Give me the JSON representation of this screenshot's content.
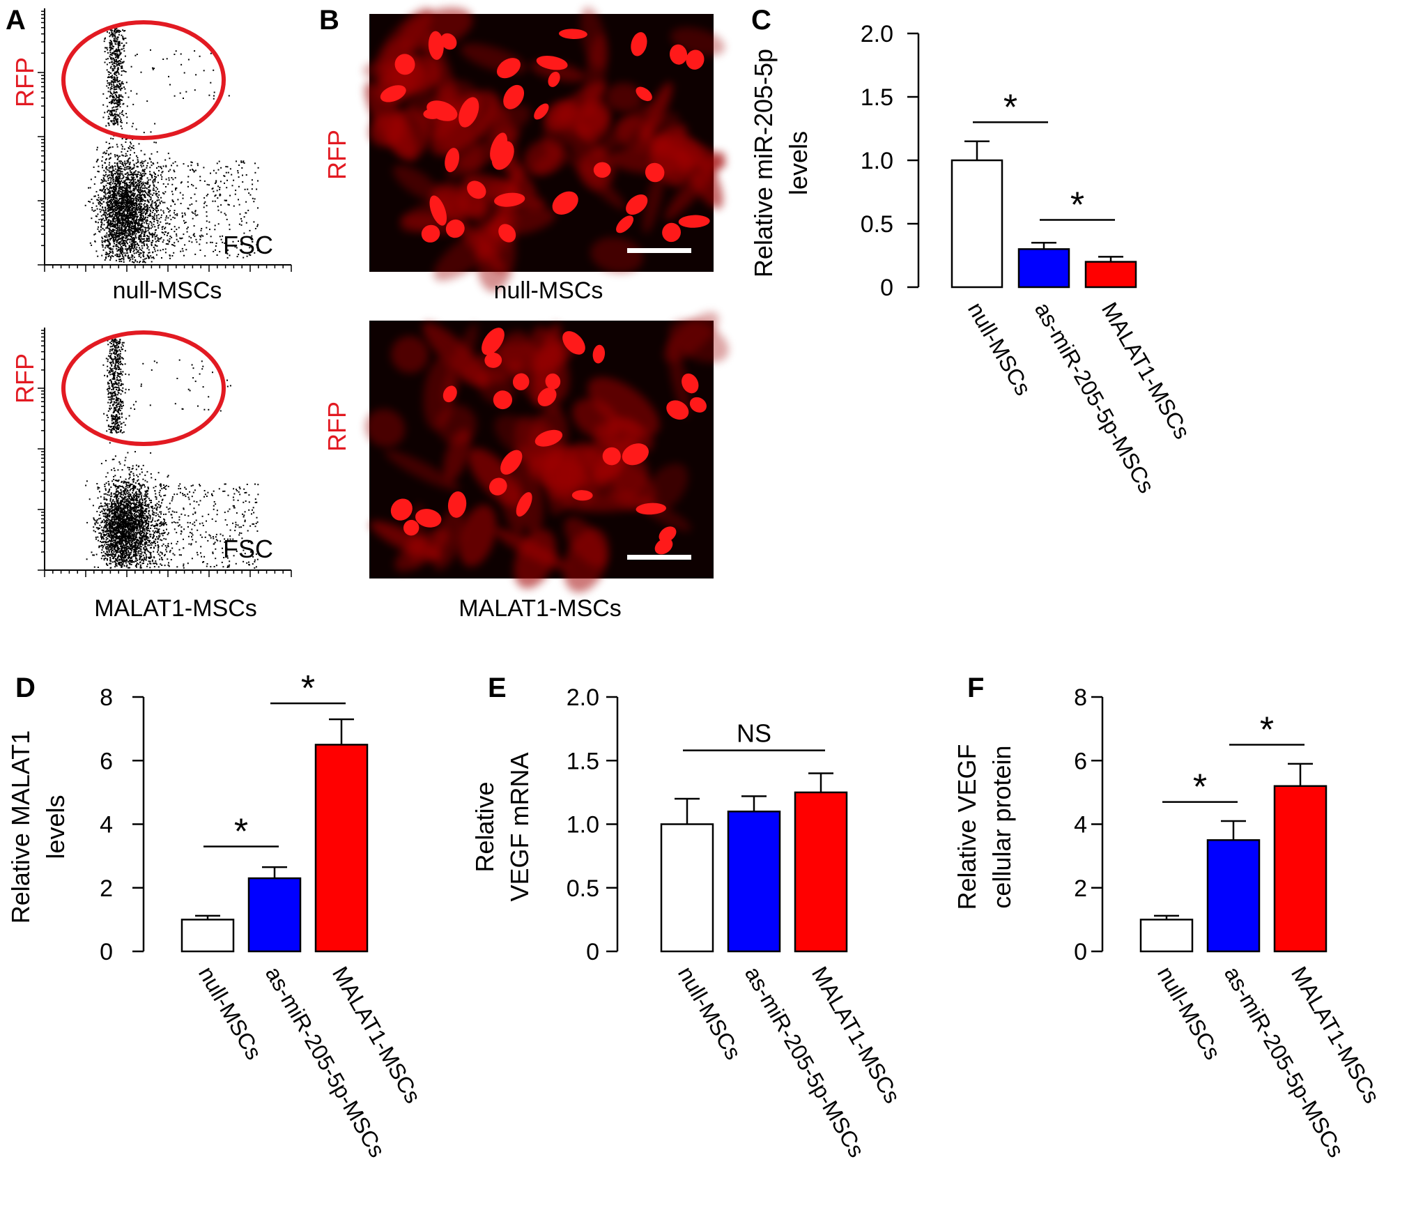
{
  "colors": {
    "red": "#ff0000",
    "blue": "#0000ff",
    "white": "#ffffff",
    "black": "#000000",
    "fluor_bg": "#0d0000",
    "cell_red": "#ff1a1a"
  },
  "panel_labels": [
    "A",
    "B",
    "C",
    "D",
    "E",
    "F"
  ],
  "flow": {
    "y_label": "RFP",
    "x_label": "FSC",
    "captions": [
      "null-MSCs",
      "MALAT1-MSCs"
    ]
  },
  "micrograph": {
    "channel_label": "RFP",
    "captions": [
      "null-MSCs",
      "MALAT1-MSCs"
    ]
  },
  "chart_data": [
    {
      "id": "C",
      "type": "bar",
      "ylabel": [
        "Relative miR-205-5p",
        "levels"
      ],
      "categories": [
        "null-MSCs",
        "as-miR-205-5p-MSCs",
        "MALAT1-MSCs"
      ],
      "values": [
        1.0,
        0.3,
        0.2
      ],
      "errors": [
        0.15,
        0.05,
        0.04
      ],
      "ylim": [
        0,
        2.0
      ],
      "ticks": [
        0,
        0.5,
        1.0,
        1.5,
        2.0
      ],
      "tick_labels": [
        "0",
        "0.5",
        "1.0",
        "1.5",
        "2.0"
      ],
      "significance": [
        {
          "from": 0,
          "to": 1,
          "label": "*",
          "y": 1.3
        },
        {
          "from": 1,
          "to": 2,
          "label": "*",
          "y": 0.53
        }
      ]
    },
    {
      "id": "D",
      "type": "bar",
      "ylabel": [
        "Relative MALAT1",
        "levels"
      ],
      "categories": [
        "null-MSCs",
        "as-miR-205-5p-MSCs",
        "MALAT1-MSCs"
      ],
      "values": [
        1.0,
        2.3,
        6.5
      ],
      "errors": [
        0.12,
        0.35,
        0.8
      ],
      "ylim": [
        0,
        8
      ],
      "ticks": [
        0,
        2,
        4,
        6,
        8
      ],
      "tick_labels": [
        "0",
        "2",
        "4",
        "6",
        "8"
      ],
      "significance": [
        {
          "from": 0,
          "to": 1,
          "label": "*",
          "y": 3.3
        },
        {
          "from": 1,
          "to": 2,
          "label": "*",
          "y": 7.8
        }
      ]
    },
    {
      "id": "E",
      "type": "bar",
      "ylabel": [
        "Relative",
        "VEGF mRNA"
      ],
      "categories": [
        "null-MSCs",
        "as-miR-205-5p-MSCs",
        "MALAT1-MSCs"
      ],
      "values": [
        1.0,
        1.1,
        1.25
      ],
      "errors": [
        0.2,
        0.12,
        0.15
      ],
      "ylim": [
        0,
        2.0
      ],
      "ticks": [
        0,
        0.5,
        1.0,
        1.5,
        2.0
      ],
      "tick_labels": [
        "0",
        "0.5",
        "1.0",
        "1.5",
        "2.0"
      ],
      "significance": [
        {
          "from": 0,
          "to": 2,
          "label": "NS",
          "y": 1.58
        }
      ]
    },
    {
      "id": "F",
      "type": "bar",
      "ylabel": [
        "Relative VEGF",
        "cellular protein"
      ],
      "categories": [
        "null-MSCs",
        "as-miR-205-5p-MSCs",
        "MALAT1-MSCs"
      ],
      "values": [
        1.0,
        3.5,
        5.2
      ],
      "errors": [
        0.12,
        0.6,
        0.7
      ],
      "ylim": [
        0,
        8
      ],
      "ticks": [
        0,
        2,
        4,
        6,
        8
      ],
      "tick_labels": [
        "0",
        "2",
        "4",
        "6",
        "8"
      ],
      "significance": [
        {
          "from": 0,
          "to": 1,
          "label": "*",
          "y": 4.7
        },
        {
          "from": 1,
          "to": 2,
          "label": "*",
          "y": 6.5
        }
      ]
    }
  ]
}
